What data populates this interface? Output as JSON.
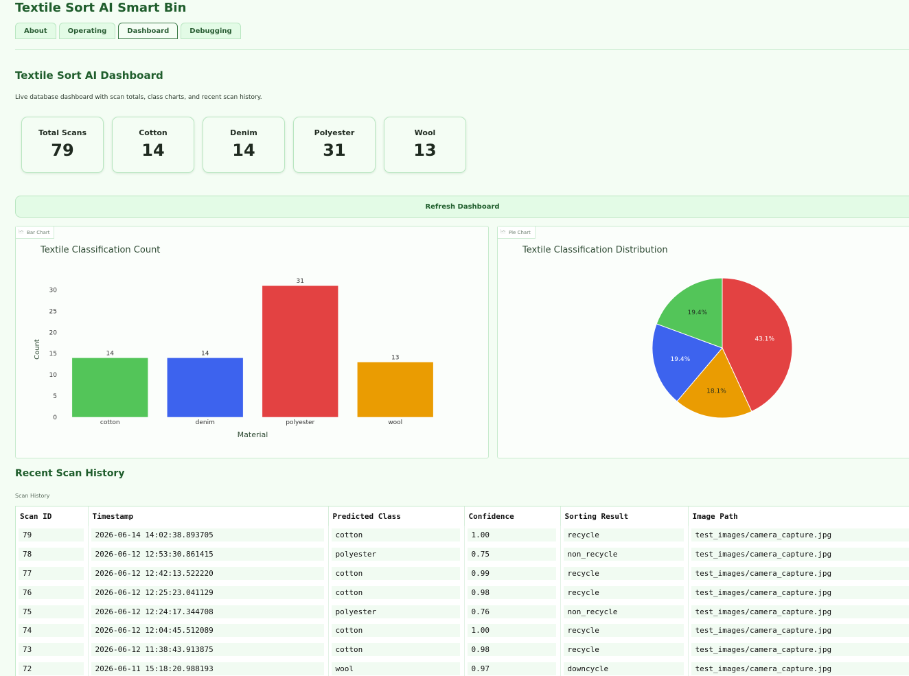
{
  "app": {
    "title": "Textile Sort AI Smart Bin"
  },
  "tabs": [
    {
      "label": "About",
      "active": false
    },
    {
      "label": "Operating",
      "active": false
    },
    {
      "label": "Dashboard",
      "active": true
    },
    {
      "label": "Debugging",
      "active": false
    }
  ],
  "dashboard": {
    "title": "Textile Sort AI Dashboard",
    "description": "Live database dashboard with scan totals, class charts, and recent scan history.",
    "refresh_label": "Refresh Dashboard"
  },
  "stats": [
    {
      "label": "Total Scans",
      "value": "79"
    },
    {
      "label": "Cotton",
      "value": "14"
    },
    {
      "label": "Denim",
      "value": "14"
    },
    {
      "label": "Polyester",
      "value": "31"
    },
    {
      "label": "Wool",
      "value": "13"
    }
  ],
  "bar_panel": {
    "tag": "Bar Chart",
    "icon": "chart-icon"
  },
  "pie_panel": {
    "tag": "Pie Chart",
    "icon": "chart-icon"
  },
  "chart_data": [
    {
      "type": "bar",
      "title": "Textile Classification Count",
      "xlabel": "Material",
      "ylabel": "Count",
      "categories": [
        "cotton",
        "denim",
        "polyester",
        "wool"
      ],
      "values": [
        14,
        14,
        31,
        13
      ],
      "colors": [
        "#53c559",
        "#3d63ee",
        "#e34242",
        "#ea9c02"
      ],
      "ylim": [
        0,
        32
      ],
      "yticks": [
        0,
        5,
        10,
        15,
        20,
        25,
        30
      ],
      "data_labels": true,
      "grid": false
    },
    {
      "type": "pie",
      "title": "Textile Classification Distribution",
      "categories": [
        "polyester",
        "wool",
        "denim",
        "cotton"
      ],
      "values": [
        43.1,
        18.1,
        19.4,
        19.4
      ],
      "labels": [
        "43.1%",
        "18.1%",
        "19.4%",
        "19.4%"
      ],
      "colors": [
        "#e34242",
        "#ea9c02",
        "#3d63ee",
        "#53c559"
      ],
      "legend": "none"
    }
  ],
  "history": {
    "title": "Recent Scan History",
    "subtitle": "Scan History",
    "columns": [
      "Scan ID",
      "Timestamp",
      "Predicted Class",
      "Confidence",
      "Sorting Result",
      "Image Path"
    ],
    "rows": [
      [
        "79",
        "2026-06-14 14:02:38.893705",
        "cotton",
        "1.00",
        "recycle",
        "test_images/camera_capture.jpg"
      ],
      [
        "78",
        "2026-06-12 12:53:30.861415",
        "polyester",
        "0.75",
        "non_recycle",
        "test_images/camera_capture.jpg"
      ],
      [
        "77",
        "2026-06-12 12:42:13.522220",
        "cotton",
        "0.99",
        "recycle",
        "test_images/camera_capture.jpg"
      ],
      [
        "76",
        "2026-06-12 12:25:23.041129",
        "cotton",
        "0.98",
        "recycle",
        "test_images/camera_capture.jpg"
      ],
      [
        "75",
        "2026-06-12 12:24:17.344708",
        "polyester",
        "0.76",
        "non_recycle",
        "test_images/camera_capture.jpg"
      ],
      [
        "74",
        "2026-06-12 12:04:45.512089",
        "cotton",
        "1.00",
        "recycle",
        "test_images/camera_capture.jpg"
      ],
      [
        "73",
        "2026-06-12 11:38:43.913875",
        "cotton",
        "0.98",
        "recycle",
        "test_images/camera_capture.jpg"
      ],
      [
        "72",
        "2026-06-11 15:18:20.988193",
        "wool",
        "0.97",
        "downcycle",
        "test_images/camera_capture.jpg"
      ]
    ]
  }
}
